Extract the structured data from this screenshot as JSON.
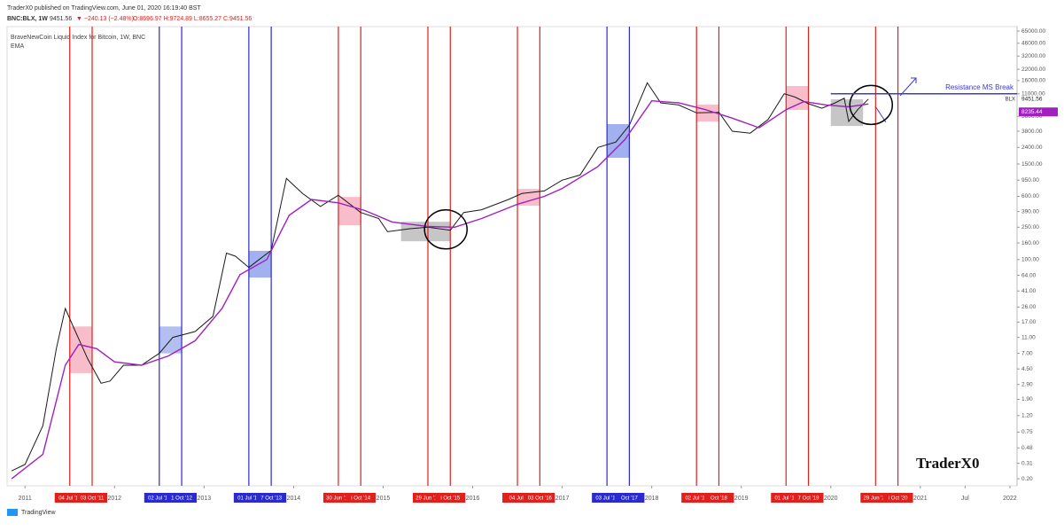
{
  "header": {
    "published": "TraderX0 published on TradingView.com, June 01, 2020 16:19:40 BST",
    "symbol": "BNC:BLX, 1W",
    "last": "9451.56",
    "change": "▼ −240.13 (−2.48%)",
    "ohlc": "O:8696.97 H:9724.89 L:8655.27 C:9451.56"
  },
  "chart_data": {
    "type": "line",
    "log_y": true,
    "grid": false,
    "xlim": [
      2010.8,
      2022.08
    ],
    "ylim": [
      0.164,
      73800
    ],
    "xticks": [
      2011,
      2012,
      2013,
      2014,
      2015,
      2016,
      2017,
      2018,
      2019,
      2020,
      2021,
      {
        "value": 2021.5,
        "label": "Jul"
      },
      2022
    ],
    "yticks": [
      {
        "value": 65000,
        "label": "65000.00"
      },
      {
        "value": 46000,
        "label": "46000.00"
      },
      {
        "value": 32000,
        "label": "32000.00"
      },
      {
        "value": 22000,
        "label": "22000.00"
      },
      {
        "value": 16000,
        "label": "16000.00"
      },
      {
        "value": 11000,
        "label": "11000.00"
      },
      {
        "value": 5800,
        "label": "5800.00"
      },
      {
        "value": 3800,
        "label": "3800.00"
      },
      {
        "value": 2400,
        "label": "2400.00"
      },
      {
        "value": 1500,
        "label": "1500.00"
      },
      {
        "value": 950,
        "label": "950.00"
      },
      {
        "value": 600,
        "label": "600.00"
      },
      {
        "value": 390,
        "label": "390.00"
      },
      {
        "value": 250,
        "label": "250.00"
      },
      {
        "value": 160,
        "label": "160.00"
      },
      {
        "value": 100,
        "label": "100.00"
      },
      {
        "value": 64,
        "label": "64.00"
      },
      {
        "value": 41,
        "label": "41.00"
      },
      {
        "value": 26,
        "label": "26.00"
      },
      {
        "value": 17,
        "label": "17.00"
      },
      {
        "value": 11,
        "label": "11.00"
      },
      {
        "value": 7,
        "label": "7.00"
      },
      {
        "value": 4.5,
        "label": "4.50"
      },
      {
        "value": 2.9,
        "label": "2.90"
      },
      {
        "value": 1.9,
        "label": "1.90"
      },
      {
        "value": 1.2,
        "label": "1.20"
      },
      {
        "value": 0.75,
        "label": "0.75"
      },
      {
        "value": 0.48,
        "label": "0.48"
      },
      {
        "value": 0.31,
        "label": "0.31"
      },
      {
        "value": 0.2,
        "label": "0.20"
      }
    ],
    "series": [
      {
        "name": "BraveNewCoin Liquid Index for Bitcoin, 1W, BNC",
        "color": "#1a1a1a",
        "x": [
          2010.85,
          2011.0,
          2011.2,
          2011.35,
          2011.45,
          2011.55,
          2011.7,
          2011.85,
          2011.95,
          2012.1,
          2012.3,
          2012.5,
          2012.65,
          2012.9,
          2013.1,
          2013.25,
          2013.35,
          2013.5,
          2013.75,
          2013.92,
          2014.1,
          2014.3,
          2014.5,
          2014.75,
          2014.95,
          2015.05,
          2015.3,
          2015.5,
          2015.75,
          2015.9,
          2016.1,
          2016.4,
          2016.55,
          2016.8,
          2017.0,
          2017.2,
          2017.4,
          2017.6,
          2017.75,
          2017.95,
          2018.1,
          2018.3,
          2018.5,
          2018.75,
          2018.9,
          2019.1,
          2019.3,
          2019.48,
          2019.6,
          2019.75,
          2019.9,
          2020.05,
          2020.15,
          2020.2,
          2020.3,
          2020.42
        ],
        "values": [
          0.25,
          0.3,
          0.9,
          8,
          25,
          14,
          6,
          3,
          3.2,
          5,
          5,
          7,
          11,
          13,
          20,
          120,
          110,
          80,
          130,
          1000,
          650,
          450,
          620,
          380,
          320,
          220,
          240,
          250,
          230,
          380,
          410,
          550,
          650,
          700,
          950,
          1100,
          2400,
          2800,
          4500,
          15000,
          8500,
          8000,
          6400,
          6500,
          3800,
          3600,
          5300,
          11000,
          10000,
          8300,
          7300,
          8500,
          9700,
          5000,
          7000,
          9451.56
        ]
      },
      {
        "name": "EMA",
        "color": "#a020c0",
        "x": [
          2010.85,
          2011.2,
          2011.45,
          2011.6,
          2011.8,
          2012.0,
          2012.3,
          2012.6,
          2012.9,
          2013.2,
          2013.4,
          2013.7,
          2013.95,
          2014.2,
          2014.5,
          2014.8,
          2015.1,
          2015.5,
          2015.8,
          2016.1,
          2016.5,
          2016.8,
          2017.0,
          2017.4,
          2017.7,
          2018.0,
          2018.3,
          2018.6,
          2018.9,
          2019.2,
          2019.5,
          2019.7,
          2019.95,
          2020.2,
          2020.42
        ],
        "values": [
          0.2,
          0.4,
          5,
          9,
          8,
          5.5,
          5,
          6.5,
          10,
          25,
          65,
          100,
          350,
          550,
          500,
          400,
          290,
          255,
          250,
          320,
          480,
          600,
          750,
          1400,
          3000,
          9000,
          8500,
          7000,
          5500,
          4200,
          7000,
          8800,
          8000,
          7600,
          8235.44
        ]
      }
    ],
    "price_tag": "BLX",
    "markers": [
      {
        "x": 2011.5,
        "label": "04 Jul '11",
        "color": "#e0201c"
      },
      {
        "x": 2011.75,
        "label": "03 Oct '11",
        "color": "#e0201c"
      },
      {
        "x": 2012.5,
        "label": "02 Jul '12",
        "color": "#2a2ad0"
      },
      {
        "x": 2012.75,
        "label": "1 Oct '12",
        "color": "#2a2ad0"
      },
      {
        "x": 2013.5,
        "label": "01 Jul '13",
        "color": "#2a2ad0"
      },
      {
        "x": 2013.75,
        "label": "7 Oct '13",
        "color": "#2a2ad0"
      },
      {
        "x": 2014.5,
        "label": "30 Jun '14",
        "color": "#e0201c"
      },
      {
        "x": 2014.75,
        "label": "i Oct '14",
        "color": "#e0201c"
      },
      {
        "x": 2015.5,
        "label": "29 Jun '15",
        "color": "#e0201c"
      },
      {
        "x": 2015.75,
        "label": "i Oct '15",
        "color": "#e0201c"
      },
      {
        "x": 2016.5,
        "label": "04 Jul '",
        "color": "#e0201c"
      },
      {
        "x": 2016.75,
        "label": "03 Oct '16",
        "color": "#e0201c"
      },
      {
        "x": 2017.5,
        "label": "03 Jul '17",
        "color": "#2a2ad0"
      },
      {
        "x": 2017.75,
        "label": "Oct '17",
        "color": "#2a2ad0"
      },
      {
        "x": 2018.5,
        "label": "02 Jul '18",
        "color": "#e0201c"
      },
      {
        "x": 2018.75,
        "label": "Oct '18",
        "color": "#e0201c"
      },
      {
        "x": 2019.5,
        "label": "01 Jul '19",
        "color": "#e0201c"
      },
      {
        "x": 2019.75,
        "label": "7 Oct '19",
        "color": "#e0201c"
      },
      {
        "x": 2020.5,
        "label": "29 Jun '20",
        "color": "#e0201c"
      },
      {
        "x": 2020.75,
        "label": "i Oct '20",
        "color": "#e0201c"
      }
    ],
    "zones": [
      {
        "x0": 2011.5,
        "x1": 2011.75,
        "y0": 4,
        "y1": 15,
        "color": "#f49aae"
      },
      {
        "x0": 2012.5,
        "x1": 2012.75,
        "y0": 7,
        "y1": 15,
        "color": "#8a9ce8"
      },
      {
        "x0": 2013.5,
        "x1": 2013.75,
        "y0": 60,
        "y1": 128,
        "color": "#6f86e6"
      },
      {
        "x0": 2014.5,
        "x1": 2014.75,
        "y0": 264,
        "y1": 590,
        "color": "#f49aae"
      },
      {
        "x0": 2015.2,
        "x1": 2015.75,
        "y0": 168,
        "y1": 292,
        "color": "#a8a8a8"
      },
      {
        "x0": 2016.5,
        "x1": 2016.75,
        "y0": 460,
        "y1": 740,
        "color": "#f49aae"
      },
      {
        "x0": 2017.5,
        "x1": 2017.75,
        "y0": 1790,
        "y1": 4650,
        "color": "#6f86e6"
      },
      {
        "x0": 2018.5,
        "x1": 2018.75,
        "y0": 5000,
        "y1": 8070,
        "color": "#f49aae"
      },
      {
        "x0": 2019.5,
        "x1": 2019.75,
        "y0": 6940,
        "y1": 13700,
        "color": "#f49aae"
      },
      {
        "x0": 2020.0,
        "x1": 2020.36,
        "y0": 4410,
        "y1": 9380,
        "color": "#a8a8a8"
      }
    ],
    "circles": [
      {
        "x": 2015.7,
        "y": 235
      },
      {
        "x": 2020.45,
        "y": 8000
      }
    ],
    "resistance": {
      "label": "Resistance MS Break",
      "value": 11000,
      "x0": 2020.0,
      "color": "#3a3ad6"
    },
    "watermark": "TraderX0"
  },
  "footer": {
    "brand": "TradingView"
  }
}
